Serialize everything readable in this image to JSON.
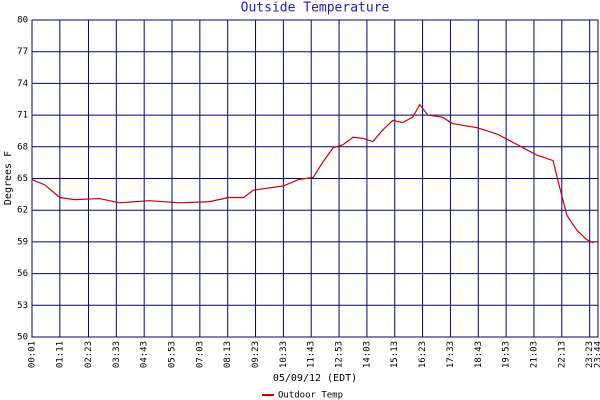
{
  "chart_data": {
    "type": "line",
    "title": "Outside Temperature",
    "x_label": "05/09/12 (EDT)",
    "y_label": "Degrees F",
    "xlim": [
      1,
      1424
    ],
    "ylim": [
      50,
      80
    ],
    "yticks": [
      50,
      53,
      56,
      59,
      62,
      65,
      68,
      71,
      74,
      77,
      80
    ],
    "xticks": [
      {
        "value": 1,
        "label": "00:01"
      },
      {
        "value": 71,
        "label": "01:11"
      },
      {
        "value": 143,
        "label": "02:23"
      },
      {
        "value": 213,
        "label": "03:33"
      },
      {
        "value": 283,
        "label": "04:43"
      },
      {
        "value": 353,
        "label": "05:53"
      },
      {
        "value": 423,
        "label": "07:03"
      },
      {
        "value": 493,
        "label": "08:13"
      },
      {
        "value": 563,
        "label": "09:23"
      },
      {
        "value": 633,
        "label": "10:33"
      },
      {
        "value": 703,
        "label": "11:43"
      },
      {
        "value": 773,
        "label": "12:53"
      },
      {
        "value": 843,
        "label": "14:03"
      },
      {
        "value": 913,
        "label": "15:13"
      },
      {
        "value": 983,
        "label": "16:23"
      },
      {
        "value": 1053,
        "label": "17:33"
      },
      {
        "value": 1123,
        "label": "18:43"
      },
      {
        "value": 1193,
        "label": "19:53"
      },
      {
        "value": 1263,
        "label": "21:03"
      },
      {
        "value": 1333,
        "label": "22:13"
      },
      {
        "value": 1403,
        "label": "23:23"
      },
      {
        "value": 1424,
        "label": "23:44"
      }
    ],
    "grid": true,
    "grid_color": "#000080",
    "x": [
      1,
      33,
      71,
      108,
      171,
      221,
      296,
      371,
      446,
      496,
      533,
      558,
      633,
      671,
      708,
      733,
      758,
      783,
      808,
      833,
      858,
      883,
      908,
      933,
      958,
      976,
      996,
      1033,
      1058,
      1121,
      1171,
      1221,
      1271,
      1311,
      1326,
      1346,
      1371,
      1396,
      1413
    ],
    "series": [
      {
        "name": "Outdoor Temp",
        "color": "#cc0000",
        "values": [
          64.9,
          64.4,
          63.2,
          63.0,
          63.1,
          62.7,
          62.9,
          62.7,
          62.8,
          63.2,
          63.2,
          63.9,
          64.3,
          64.9,
          65.1,
          66.6,
          67.9,
          68.2,
          68.9,
          68.8,
          68.5,
          69.6,
          70.5,
          70.3,
          70.8,
          72.0,
          71.0,
          70.8,
          70.2,
          69.8,
          69.2,
          68.2,
          67.2,
          66.7,
          64.4,
          61.5,
          60.1,
          59.2,
          58.9
        ]
      }
    ]
  }
}
